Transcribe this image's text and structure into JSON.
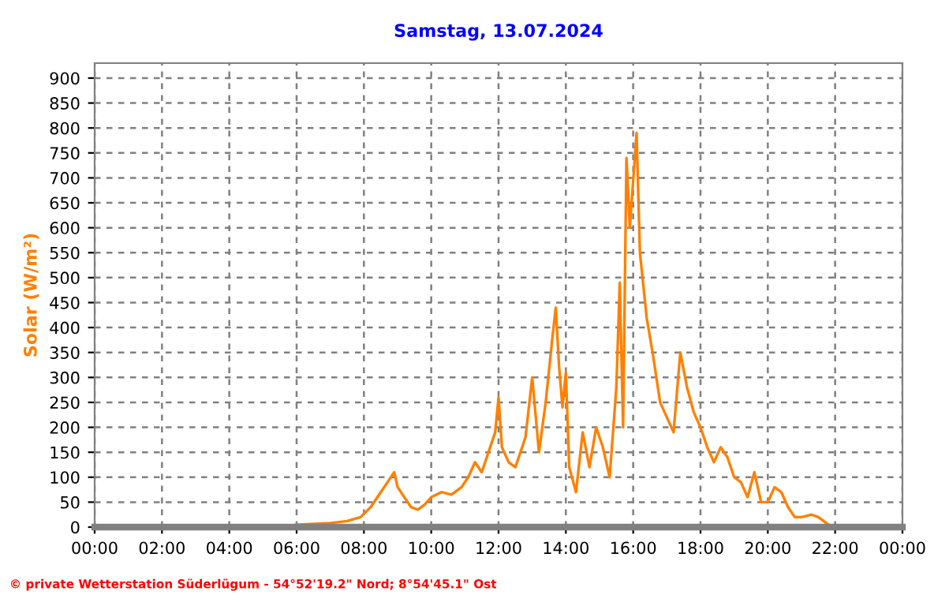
{
  "chart_data": {
    "type": "line",
    "title": "Samstag, 13.07.2024",
    "ylabel": "Solar (W/m²)",
    "x": [
      5.8,
      6.0,
      7.0,
      7.5,
      7.9,
      8.2,
      8.5,
      8.7,
      8.9,
      9.0,
      9.2,
      9.4,
      9.6,
      9.8,
      10.0,
      10.3,
      10.6,
      10.9,
      11.1,
      11.3,
      11.5,
      11.7,
      11.9,
      12.0,
      12.1,
      12.3,
      12.5,
      12.8,
      13.0,
      13.2,
      13.4,
      13.6,
      13.7,
      13.8,
      13.9,
      14.0,
      14.1,
      14.3,
      14.5,
      14.7,
      14.9,
      15.1,
      15.3,
      15.5,
      15.6,
      15.7,
      15.8,
      15.9,
      16.1,
      16.2,
      16.4,
      16.6,
      16.8,
      17.0,
      17.2,
      17.4,
      17.6,
      17.8,
      18.0,
      18.2,
      18.4,
      18.6,
      18.8,
      19.0,
      19.2,
      19.4,
      19.6,
      19.8,
      20.0,
      20.2,
      20.4,
      20.6,
      20.8,
      21.0,
      21.3,
      21.5,
      21.8,
      22.0,
      24.0
    ],
    "series": [
      {
        "color": "#ff8000",
        "values": [
          2,
          5,
          8,
          12,
          20,
          40,
          70,
          90,
          110,
          80,
          60,
          40,
          35,
          45,
          60,
          70,
          65,
          80,
          100,
          130,
          110,
          150,
          190,
          260,
          160,
          130,
          120,
          180,
          300,
          150,
          250,
          380,
          440,
          320,
          240,
          310,
          120,
          70,
          190,
          120,
          200,
          160,
          100,
          280,
          490,
          200,
          740,
          600,
          790,
          550,
          420,
          340,
          250,
          220,
          190,
          350,
          280,
          230,
          200,
          160,
          130,
          160,
          140,
          100,
          90,
          60,
          110,
          50,
          50,
          80,
          70,
          40,
          20,
          20,
          25,
          20,
          5,
          0,
          0
        ]
      }
    ],
    "xlim": [
      0,
      24
    ],
    "xticks": [
      {
        "value": 0,
        "label": "00:00"
      },
      {
        "value": 2,
        "label": "02:00"
      },
      {
        "value": 4,
        "label": "04:00"
      },
      {
        "value": 6,
        "label": "06:00"
      },
      {
        "value": 8,
        "label": "08:00"
      },
      {
        "value": 10,
        "label": "10:00"
      },
      {
        "value": 12,
        "label": "12:00"
      },
      {
        "value": 14,
        "label": "14:00"
      },
      {
        "value": 16,
        "label": "16:00"
      },
      {
        "value": 18,
        "label": "18:00"
      },
      {
        "value": 20,
        "label": "20:00"
      },
      {
        "value": 22,
        "label": "22:00"
      },
      {
        "value": 24,
        "label": "00:00"
      }
    ],
    "ylim": [
      0,
      930
    ],
    "yticks": [
      0,
      50,
      100,
      150,
      200,
      250,
      300,
      350,
      400,
      450,
      500,
      550,
      600,
      650,
      700,
      750,
      800,
      850,
      900
    ],
    "grid": true,
    "legend": false,
    "line_style": "solid",
    "annotations": [
      "© private Wetterstation Süderlügum - 54°52'19.2\" Nord; 8°54'45.1\" Ost"
    ]
  }
}
